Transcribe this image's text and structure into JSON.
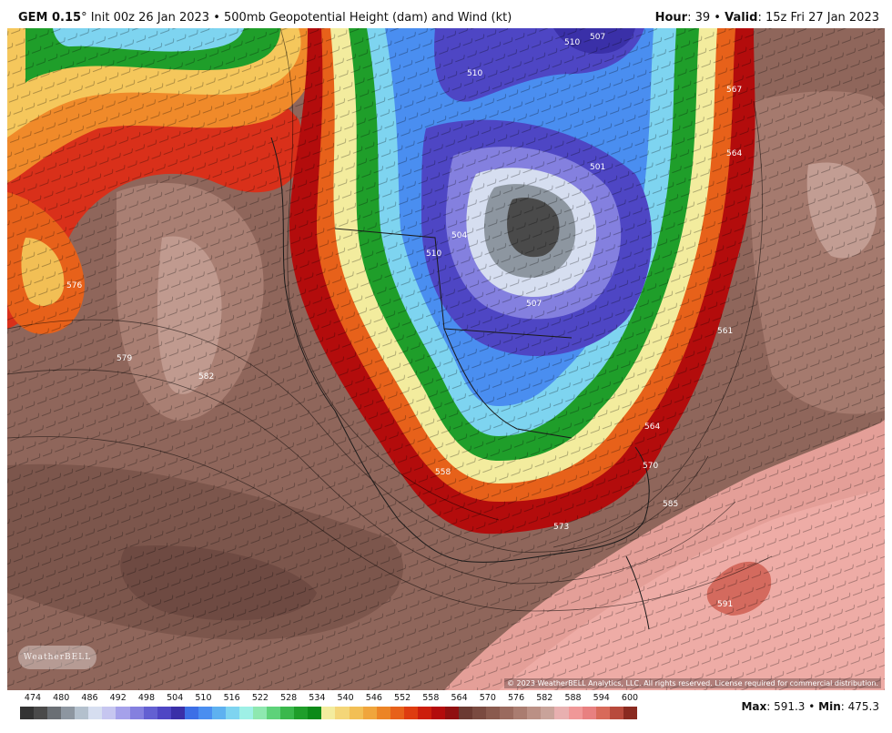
{
  "header": {
    "model": "GEM 0.15",
    "deg": "°",
    "init": " Init 00z 26 Jan 2023",
    "sep": " • ",
    "field": "500mb Geopotential Height (dam) and Wind (kt)",
    "hour_label": "Hour",
    "hour_value": ": 39",
    "valid_label": "Valid",
    "valid_value": ": 15z Fri 27 Jan 2023"
  },
  "map": {
    "copyright": "© 2023 WeatherBELL Analytics, LLC. All rights reserved. License required for commercial distribution.",
    "logo_text": "WeatherBELL",
    "contour_labels": [
      "510",
      "510",
      "507",
      "504",
      "510",
      "501",
      "507",
      "567",
      "564",
      "561",
      "570",
      "573",
      "558",
      "564",
      "585",
      "582",
      "579",
      "576",
      "591"
    ]
  },
  "legend": {
    "tick_labels": [
      "474",
      "480",
      "486",
      "492",
      "498",
      "504",
      "510",
      "516",
      "522",
      "528",
      "534",
      "540",
      "546",
      "552",
      "558",
      "564",
      "570",
      "576",
      "582",
      "588",
      "594",
      "600"
    ],
    "colors": [
      "#333333",
      "#4a4a4a",
      "#6a6f74",
      "#8d96a0",
      "#b3c0cd",
      "#d6def0",
      "#c6c6f0",
      "#a5a1ea",
      "#8480df",
      "#6360d2",
      "#4e46c4",
      "#3a30a8",
      "#3c6fe6",
      "#4a8ef0",
      "#5eb1f0",
      "#7ed4f0",
      "#9ef0e6",
      "#8ee8b0",
      "#5ed27a",
      "#3ab84c",
      "#1f9e2a",
      "#0c8a18",
      "#f3ec9e",
      "#f4d678",
      "#f2bf55",
      "#f0a53c",
      "#ec8426",
      "#e7611a",
      "#de3c10",
      "#cc1e0c",
      "#b30c0c",
      "#901010",
      "#6b3a32",
      "#7a4a40",
      "#8a5a4e",
      "#9a6a5e",
      "#aa7c70",
      "#bb9085",
      "#c9a39a",
      "#e8b0b0",
      "#f09898",
      "#e88080",
      "#d86a5a",
      "#b84a3c",
      "#8a2a20"
    ],
    "max_label": "Max",
    "max_value": ": 591.3",
    "sep": " • ",
    "min_label": "Min",
    "min_value": ": 475.3"
  }
}
